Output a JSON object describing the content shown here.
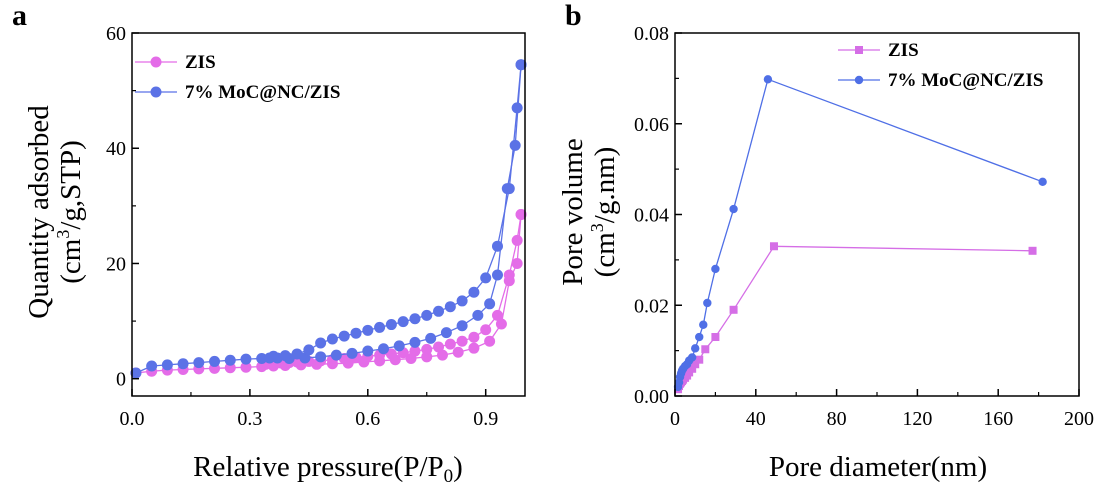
{
  "chart_data": [
    {
      "panel": "a",
      "type": "scatter",
      "xlabel": "Relative pressure(P/P",
      "xlabel_sub": "0",
      "xlabel_end": ")",
      "ylabel_line1": "Quantity adsorbed",
      "ylabel_line2": "(cm",
      "ylabel_sup": "3",
      "ylabel_line2_end": "/g,STP)",
      "xlim": [
        0,
        1.0
      ],
      "ylim": [
        -3,
        60
      ],
      "xticks": [
        "0.0",
        "0.3",
        "0.6",
        "0.9"
      ],
      "yticks": [
        "0",
        "20",
        "40",
        "60"
      ],
      "legend_position": "top-left",
      "series": [
        {
          "name": "ZIS",
          "color": "#e46ce8",
          "marker": "circle",
          "adsorption": {
            "x": [
              0.01,
              0.05,
              0.09,
              0.13,
              0.17,
              0.21,
              0.25,
              0.29,
              0.33,
              0.36,
              0.39,
              0.43,
              0.47,
              0.51,
              0.55,
              0.59,
              0.63,
              0.67,
              0.71,
              0.75,
              0.79,
              0.83,
              0.87,
              0.91,
              0.94,
              0.96,
              0.98,
              0.99
            ],
            "y": [
              1.0,
              1.3,
              1.5,
              1.6,
              1.7,
              1.8,
              1.9,
              2.0,
              2.1,
              2.2,
              2.3,
              2.4,
              2.5,
              2.6,
              2.7,
              2.9,
              3.1,
              3.3,
              3.5,
              3.8,
              4.1,
              4.6,
              5.3,
              6.5,
              9.5,
              17.0,
              20.0,
              28.5
            ]
          },
          "desorption": {
            "x": [
              0.99,
              0.98,
              0.96,
              0.93,
              0.9,
              0.87,
              0.84,
              0.81,
              0.78,
              0.75,
              0.72,
              0.69,
              0.66,
              0.63,
              0.6,
              0.57,
              0.54,
              0.51,
              0.48,
              0.45,
              0.42,
              0.4,
              0.38,
              0.36,
              0.34
            ],
            "y": [
              28.5,
              24.0,
              18.0,
              11.0,
              8.5,
              7.2,
              6.5,
              6.0,
              5.5,
              5.1,
              4.8,
              4.5,
              4.3,
              4.1,
              3.9,
              3.7,
              3.5,
              3.3,
              3.1,
              3.0,
              2.9,
              2.8,
              2.7,
              2.6,
              2.5
            ]
          }
        },
        {
          "name": "7% MoC@NC/ZIS",
          "color": "#5b72e6",
          "marker": "circle",
          "adsorption": {
            "x": [
              0.01,
              0.05,
              0.09,
              0.13,
              0.17,
              0.21,
              0.25,
              0.29,
              0.33,
              0.35,
              0.37,
              0.4,
              0.44,
              0.48,
              0.52,
              0.56,
              0.6,
              0.64,
              0.68,
              0.72,
              0.76,
              0.8,
              0.84,
              0.88,
              0.91,
              0.93,
              0.955,
              0.975,
              0.99
            ],
            "y": [
              1.0,
              2.2,
              2.4,
              2.6,
              2.8,
              3.0,
              3.2,
              3.4,
              3.5,
              3.6,
              3.6,
              3.5,
              3.6,
              3.8,
              4.1,
              4.4,
              4.8,
              5.2,
              5.7,
              6.3,
              7.0,
              8.0,
              9.2,
              11.0,
              13.0,
              18.0,
              33.0,
              40.5,
              54.5
            ]
          },
          "desorption": {
            "x": [
              0.99,
              0.98,
              0.96,
              0.93,
              0.9,
              0.87,
              0.84,
              0.81,
              0.78,
              0.75,
              0.72,
              0.69,
              0.66,
              0.63,
              0.6,
              0.57,
              0.54,
              0.51,
              0.48,
              0.45,
              0.42,
              0.39,
              0.36
            ],
            "y": [
              54.5,
              47.0,
              33.0,
              23.0,
              17.5,
              15.0,
              13.5,
              12.5,
              11.7,
              11.0,
              10.4,
              9.9,
              9.4,
              8.9,
              8.4,
              7.9,
              7.4,
              6.9,
              6.2,
              5.0,
              4.3,
              4.0,
              3.9
            ]
          }
        }
      ]
    },
    {
      "panel": "b",
      "type": "line",
      "xlabel": "Pore diameter(nm)",
      "ylabel_line1": "Pore volume",
      "ylabel_line2": "(cm",
      "ylabel_sup": "3",
      "ylabel_line2_end": "/g.nm)",
      "xlim": [
        0,
        200
      ],
      "ylim": [
        0,
        0.08
      ],
      "xticks": [
        "0",
        "40",
        "80",
        "120",
        "160",
        "200"
      ],
      "yticks": [
        "0.00",
        "0.02",
        "0.04",
        "0.06",
        "0.08"
      ],
      "legend_position": "top-right",
      "series": [
        {
          "name": "ZIS",
          "color": "#d56ee6",
          "marker": "square",
          "x": [
            1.5,
            2.0,
            2.5,
            3.0,
            3.5,
            4.0,
            5.0,
            6.0,
            7.0,
            8.5,
            10.0,
            12.0,
            15.0,
            20.0,
            29.0,
            49.0,
            177.0
          ],
          "y": [
            0.0015,
            0.0022,
            0.0027,
            0.003,
            0.0033,
            0.0036,
            0.004,
            0.0045,
            0.0052,
            0.006,
            0.007,
            0.008,
            0.0103,
            0.013,
            0.019,
            0.033,
            0.032
          ]
        },
        {
          "name": "7% MoC@NC/ZIS",
          "color": "#4f6fe6",
          "marker": "circle",
          "x": [
            1.5,
            2.0,
            2.5,
            3.0,
            3.5,
            4.0,
            5.0,
            6.0,
            7.0,
            8.5,
            10.0,
            12.0,
            14.0,
            16.0,
            20.0,
            29.0,
            46.0,
            182.0
          ],
          "y": [
            0.002,
            0.003,
            0.0042,
            0.005,
            0.0056,
            0.006,
            0.0066,
            0.007,
            0.0078,
            0.0085,
            0.0105,
            0.013,
            0.0157,
            0.0205,
            0.028,
            0.0412,
            0.0698,
            0.0472
          ]
        }
      ]
    }
  ]
}
